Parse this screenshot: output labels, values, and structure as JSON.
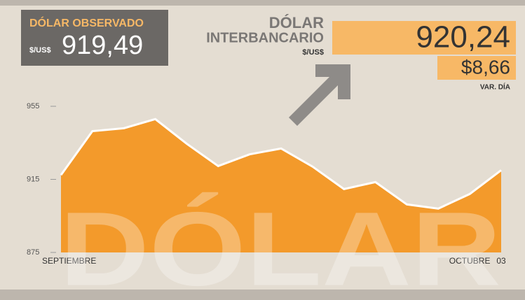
{
  "chart_data": {
    "type": "area",
    "watermark": "DÓLAR",
    "observed": {
      "title": "DÓLAR OBSERVADO",
      "unit": "$/US$",
      "value": "919,49"
    },
    "interbank": {
      "title_line1": "DÓLAR",
      "title_line2": "INTERBANCARIO",
      "unit": "$/US$",
      "value": "920,24",
      "change": "$8,66",
      "change_label": "VAR. DÍA"
    },
    "categories": [
      "SEPTIEMBRE",
      null,
      null,
      null,
      null,
      null,
      null,
      null,
      null,
      null,
      null,
      null,
      null,
      "OCTUBRE",
      "03"
    ],
    "values": [
      917.4,
      941.4,
      943,
      948,
      934.5,
      922.3,
      928.7,
      931.9,
      922,
      909.7,
      913.5,
      901.3,
      899,
      907,
      920
    ],
    "color": "#f39a2b",
    "line_color": "#ffffff",
    "ylim": [
      875,
      955
    ],
    "yticks": [
      875,
      915,
      955
    ],
    "grid": false
  }
}
